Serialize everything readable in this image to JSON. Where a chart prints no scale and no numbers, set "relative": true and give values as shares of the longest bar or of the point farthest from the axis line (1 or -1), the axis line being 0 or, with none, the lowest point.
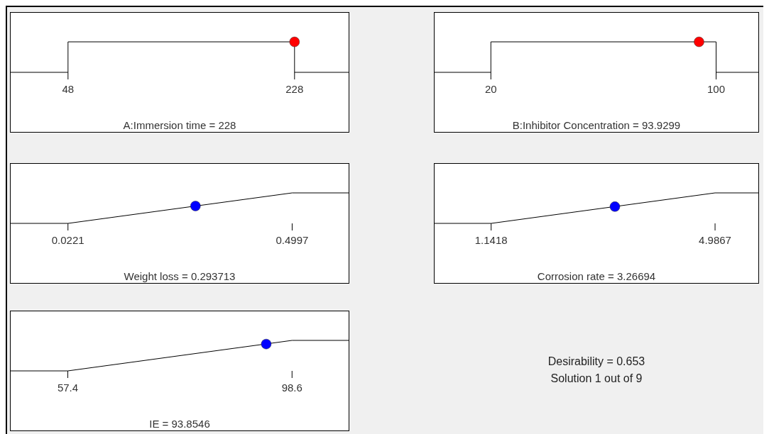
{
  "chart_data": [
    {
      "type": "line",
      "xlabel": "A:Immersion time = 228",
      "xlim": [
        2.4,
        271
      ],
      "xticks": [
        48,
        228
      ],
      "relative": true,
      "series": [
        {
          "type": "line",
          "color": "#000000",
          "x": [
            2.4,
            48,
            48,
            228,
            228,
            271
          ],
          "values": [
            0,
            0,
            1,
            1,
            0,
            0
          ]
        },
        {
          "type": "scatter",
          "color": "#ff0000",
          "x": [
            228
          ],
          "values": [
            1
          ]
        }
      ]
    },
    {
      "type": "line",
      "xlabel": "B:Inhibitor Concentration  = 93.9299",
      "xlim": [
        0,
        115
      ],
      "xticks": [
        20,
        100
      ],
      "relative": true,
      "series": [
        {
          "type": "line",
          "color": "#000000",
          "x": [
            0,
            20,
            20,
            100,
            100,
            115
          ],
          "values": [
            0,
            0,
            1,
            1,
            0,
            0
          ]
        },
        {
          "type": "scatter",
          "color": "#ff0000",
          "x": [
            93.9299
          ],
          "values": [
            1
          ]
        }
      ]
    },
    {
      "type": "line",
      "xlabel": "Weight loss = 0.293713",
      "xlim": [
        -0.1,
        0.62
      ],
      "xticks": [
        0.0221,
        0.4997
      ],
      "relative": true,
      "series": [
        {
          "type": "line",
          "color": "#000000",
          "x": [
            -0.1,
            0.0221,
            0.4997,
            0.62
          ],
          "values": [
            0,
            0,
            1,
            1
          ]
        },
        {
          "type": "scatter",
          "color": "#0000ff",
          "x": [
            0.293713
          ],
          "values": [
            0.57
          ]
        }
      ]
    },
    {
      "type": "line",
      "xlabel": "Corrosion rate = 3.26694",
      "xlim": [
        0.17,
        5.73
      ],
      "xticks": [
        1.1418,
        4.9867
      ],
      "relative": true,
      "series": [
        {
          "type": "line",
          "color": "#000000",
          "x": [
            0.17,
            1.1418,
            4.9867,
            5.73
          ],
          "values": [
            0,
            0,
            1,
            1
          ]
        },
        {
          "type": "scatter",
          "color": "#0000ff",
          "x": [
            3.26694
          ],
          "values": [
            0.55
          ]
        }
      ]
    },
    {
      "type": "line",
      "xlabel": "IE = 93.8546",
      "xlim": [
        46.9,
        109
      ],
      "xticks": [
        57.4,
        98.6
      ],
      "relative": true,
      "series": [
        {
          "type": "line",
          "color": "#000000",
          "x": [
            46.9,
            57.4,
            98.6,
            109
          ],
          "values": [
            0,
            0,
            1,
            1
          ]
        },
        {
          "type": "scatter",
          "color": "#0000ff",
          "x": [
            93.8546
          ],
          "values": [
            0.88
          ]
        }
      ]
    },
    {
      "type": "other",
      "annotations": [
        "Desirability = 0.653",
        "Solution 1 out of 9"
      ]
    }
  ]
}
